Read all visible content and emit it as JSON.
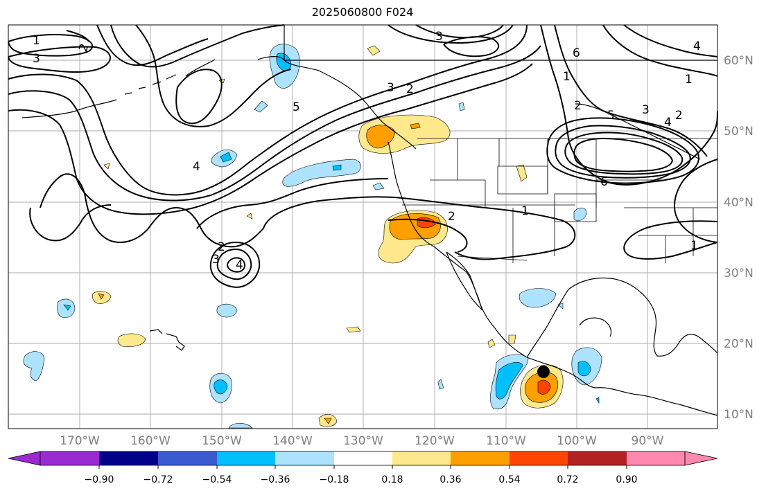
{
  "title": "2025060800 F024",
  "lat_labels": [
    "60°N",
    "50°N",
    "40°N",
    "30°N",
    "20°N",
    "10°N"
  ],
  "lon_labels": [
    "170°W",
    "160°W",
    "150°W",
    "140°W",
    "130°W",
    "120°W",
    "110°W",
    "100°W",
    "90°W"
  ],
  "contour_labels": [
    "1",
    "3",
    "2",
    "3",
    "6",
    "4",
    "1",
    "3",
    "2",
    "4",
    "5",
    "3",
    "2",
    "1",
    "2",
    "4",
    "5",
    "3",
    "2",
    "4",
    "6",
    "1",
    "2",
    "1"
  ],
  "colorbar": {
    "ticks": [
      "−0.90",
      "−0.72",
      "−0.54",
      "−0.36",
      "−0.18",
      "0.18",
      "0.36",
      "0.54",
      "0.72",
      "0.90"
    ],
    "colors": [
      "#9b2ad0",
      "#00008b",
      "#3a5bd0",
      "#00bfff",
      "#aee3ff",
      "#ffffff",
      "#ffe98c",
      "#ff9f00",
      "#ff4500",
      "#b22222",
      "#ff88b0"
    ]
  },
  "marker": "black-dot"
}
